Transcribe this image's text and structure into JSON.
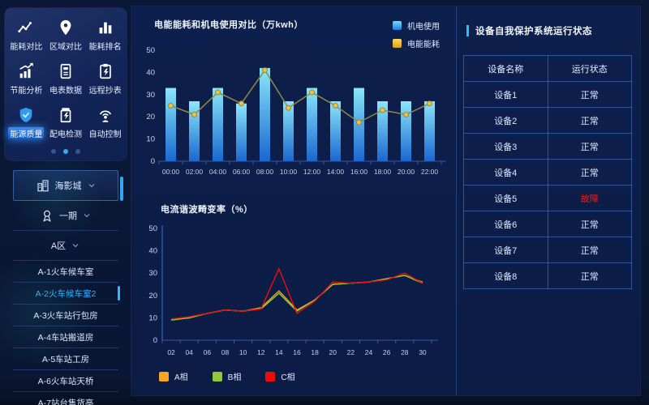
{
  "sidebar": {
    "menu": [
      {
        "label": "能耗对比",
        "icon": "trend-icon",
        "active": false
      },
      {
        "label": "区域对比",
        "icon": "location-icon",
        "active": false
      },
      {
        "label": "能耗排名",
        "icon": "ranking-icon",
        "active": false
      },
      {
        "label": "节能分析",
        "icon": "analysis-icon",
        "active": false
      },
      {
        "label": "电表数据",
        "icon": "meter-icon",
        "active": false
      },
      {
        "label": "远程抄表",
        "icon": "remote-reading-icon",
        "active": false
      },
      {
        "label": "能源质量",
        "icon": "shield-icon",
        "active": true
      },
      {
        "label": "配电检测",
        "icon": "distribution-icon",
        "active": false
      },
      {
        "label": "自动控制",
        "icon": "auto-control-icon",
        "active": false
      }
    ],
    "pagination": {
      "count": 3,
      "active": 1
    },
    "tree": [
      {
        "label": "海影城",
        "level": "site",
        "icon": "building-icon",
        "expandable": true,
        "selected": false
      },
      {
        "label": "一期",
        "level": "branch",
        "icon": "medal-icon",
        "expandable": true,
        "selected": false
      },
      {
        "label": "A区",
        "level": "branch",
        "icon": "",
        "expandable": true,
        "selected": false
      },
      {
        "label": "A-1火车候车室",
        "level": "leaf",
        "icon": "",
        "expandable": false,
        "selected": false
      },
      {
        "label": "A-2火车候车室2",
        "level": "leaf",
        "icon": "",
        "expandable": false,
        "selected": true
      },
      {
        "label": "A-3火车站行包房",
        "level": "leaf",
        "icon": "",
        "expandable": false,
        "selected": false
      },
      {
        "label": "A-4车站搬道房",
        "level": "leaf",
        "icon": "",
        "expandable": false,
        "selected": false
      },
      {
        "label": "A-5车站工房",
        "level": "leaf",
        "icon": "",
        "expandable": false,
        "selected": false
      },
      {
        "label": "A-6火车站天桥",
        "level": "leaf",
        "icon": "",
        "expandable": false,
        "selected": false
      },
      {
        "label": "A-7站台售货亭",
        "level": "leaf",
        "icon": "",
        "expandable": false,
        "selected": false
      }
    ]
  },
  "chart_data": [
    {
      "type": "bar",
      "title": "电能能耗和机电使用对比（万kwh）",
      "categories": [
        "00:00",
        "02:00",
        "04:00",
        "06:00",
        "08:00",
        "10:00",
        "12:00",
        "14:00",
        "16:00",
        "18:00",
        "20:00",
        "22:00"
      ],
      "series": [
        {
          "name": "机电使用",
          "type": "bar",
          "color_top": "#8be7fa",
          "color_bottom": "#1a67d0",
          "values": [
            33,
            27,
            33,
            26,
            42,
            27,
            33,
            27,
            33,
            27,
            27,
            27
          ]
        },
        {
          "name": "电能能耗",
          "type": "line",
          "color": "#8f8a45",
          "dot_color": "#f4c13d",
          "values": [
            25,
            21,
            31,
            26,
            41,
            24,
            31,
            25,
            17.5,
            23,
            21,
            26
          ]
        }
      ],
      "ylim": [
        0,
        50
      ],
      "yticks": [
        0,
        10,
        20,
        30,
        40,
        50
      ],
      "legend_position": "top-right",
      "grid": false
    },
    {
      "type": "line",
      "title": "电流谐波畸变率（%）",
      "categories": [
        "02",
        "04",
        "06",
        "08",
        "10",
        "12",
        "14",
        "16",
        "18",
        "20",
        "22",
        "24",
        "26",
        "28",
        "30"
      ],
      "series": [
        {
          "name": "A相",
          "color": "#f5a623",
          "values": [
            9.5,
            10,
            12,
            13.5,
            13,
            14.5,
            22,
            13.5,
            18,
            25,
            25.5,
            26,
            27.5,
            29,
            26
          ]
        },
        {
          "name": "B相",
          "color": "#8fc93a",
          "values": [
            9,
            10,
            12,
            13.5,
            13,
            14,
            21,
            13,
            18,
            25,
            25.5,
            26,
            27.5,
            29,
            25.5
          ]
        },
        {
          "name": "C相",
          "color": "#ef0a0a",
          "values": [
            9.5,
            10.5,
            12,
            13.5,
            13,
            14,
            32,
            12,
            17.5,
            26,
            25.5,
            26,
            27,
            30,
            25.5
          ]
        }
      ],
      "ylim": [
        0,
        50
      ],
      "yticks": [
        0,
        10,
        20,
        30,
        40,
        50
      ],
      "legend_position": "bottom-left",
      "grid": false
    }
  ],
  "device_panel": {
    "title": "设备自我保护系统运行状态",
    "table": {
      "headers": [
        "设备名称",
        "运行状态"
      ],
      "rows": [
        {
          "name": "设备1",
          "status": "正常"
        },
        {
          "name": "设备2",
          "status": "正常"
        },
        {
          "name": "设备3",
          "status": "正常"
        },
        {
          "name": "设备4",
          "status": "正常"
        },
        {
          "name": "设备5",
          "status": "故障"
        },
        {
          "name": "设备6",
          "status": "正常"
        },
        {
          "name": "设备7",
          "status": "正常"
        },
        {
          "name": "设备8",
          "status": "正常"
        }
      ]
    },
    "status_colors": {
      "正常": "#dce7ff",
      "故障": "#e02121"
    }
  },
  "colors": {
    "accent_cyan": "#24c4f4",
    "axis_line": "#2d5bab",
    "selected_item": "#2fb7ff"
  }
}
